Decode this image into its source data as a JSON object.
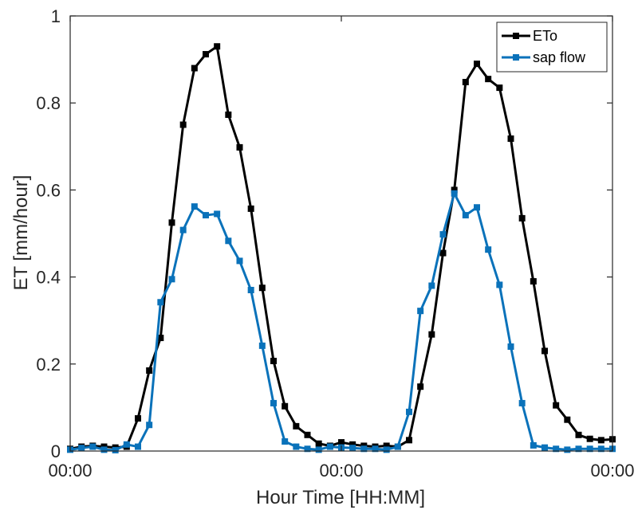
{
  "chart_data": {
    "type": "line",
    "xlabel": "Hour Time [HH:MM]",
    "ylabel": "ET [mm/hour]",
    "ylim": [
      0,
      1
    ],
    "xlim": [
      0,
      48
    ],
    "y_ticks": [
      "0",
      "0.2",
      "0.4",
      "0.6",
      "0.8",
      "1"
    ],
    "y_tick_values": [
      0,
      0.2,
      0.4,
      0.6,
      0.8,
      1
    ],
    "x_ticks": [
      {
        "hour": 0,
        "label": "00:00"
      },
      {
        "hour": 24,
        "label": "00:00"
      },
      {
        "hour": 48,
        "label": "00:00"
      }
    ],
    "grid": false,
    "legend": "top-right",
    "x": [
      0,
      1,
      2,
      3,
      4,
      5,
      6,
      7,
      8,
      9,
      10,
      11,
      12,
      13,
      14,
      15,
      16,
      17,
      18,
      19,
      20,
      21,
      22,
      23,
      24,
      25,
      26,
      27,
      28,
      29,
      30,
      31,
      32,
      33,
      34,
      35,
      36,
      37,
      38,
      39,
      40,
      41,
      42,
      43,
      44,
      45,
      46,
      47,
      48
    ],
    "series": [
      {
        "name": "ETo",
        "color": "#000000",
        "values": [
          0.005,
          0.01,
          0.012,
          0.01,
          0.008,
          0.01,
          0.075,
          0.185,
          0.26,
          0.525,
          0.75,
          0.88,
          0.912,
          0.93,
          0.773,
          0.698,
          0.557,
          0.375,
          0.207,
          0.103,
          0.057,
          0.037,
          0.017,
          0.012,
          0.02,
          0.015,
          0.012,
          0.01,
          0.012,
          0.01,
          0.025,
          0.148,
          0.268,
          0.455,
          0.6,
          0.848,
          0.89,
          0.855,
          0.835,
          0.718,
          0.535,
          0.39,
          0.23,
          0.105,
          0.072,
          0.037,
          0.028,
          0.025,
          0.027
        ]
      },
      {
        "name": "sap flow",
        "color": "#0a72ba",
        "values": [
          0.003,
          0.007,
          0.01,
          0.003,
          0.002,
          0.015,
          0.01,
          0.06,
          0.342,
          0.395,
          0.508,
          0.562,
          0.542,
          0.545,
          0.483,
          0.437,
          0.37,
          0.242,
          0.11,
          0.022,
          0.01,
          0.005,
          0.003,
          0.01,
          0.008,
          0.007,
          0.005,
          0.005,
          0.003,
          0.01,
          0.09,
          0.322,
          0.38,
          0.498,
          0.592,
          0.542,
          0.56,
          0.463,
          0.382,
          0.24,
          0.11,
          0.013,
          0.008,
          0.005,
          0.003,
          0.005,
          0.005,
          0.005,
          0.005
        ]
      }
    ]
  }
}
